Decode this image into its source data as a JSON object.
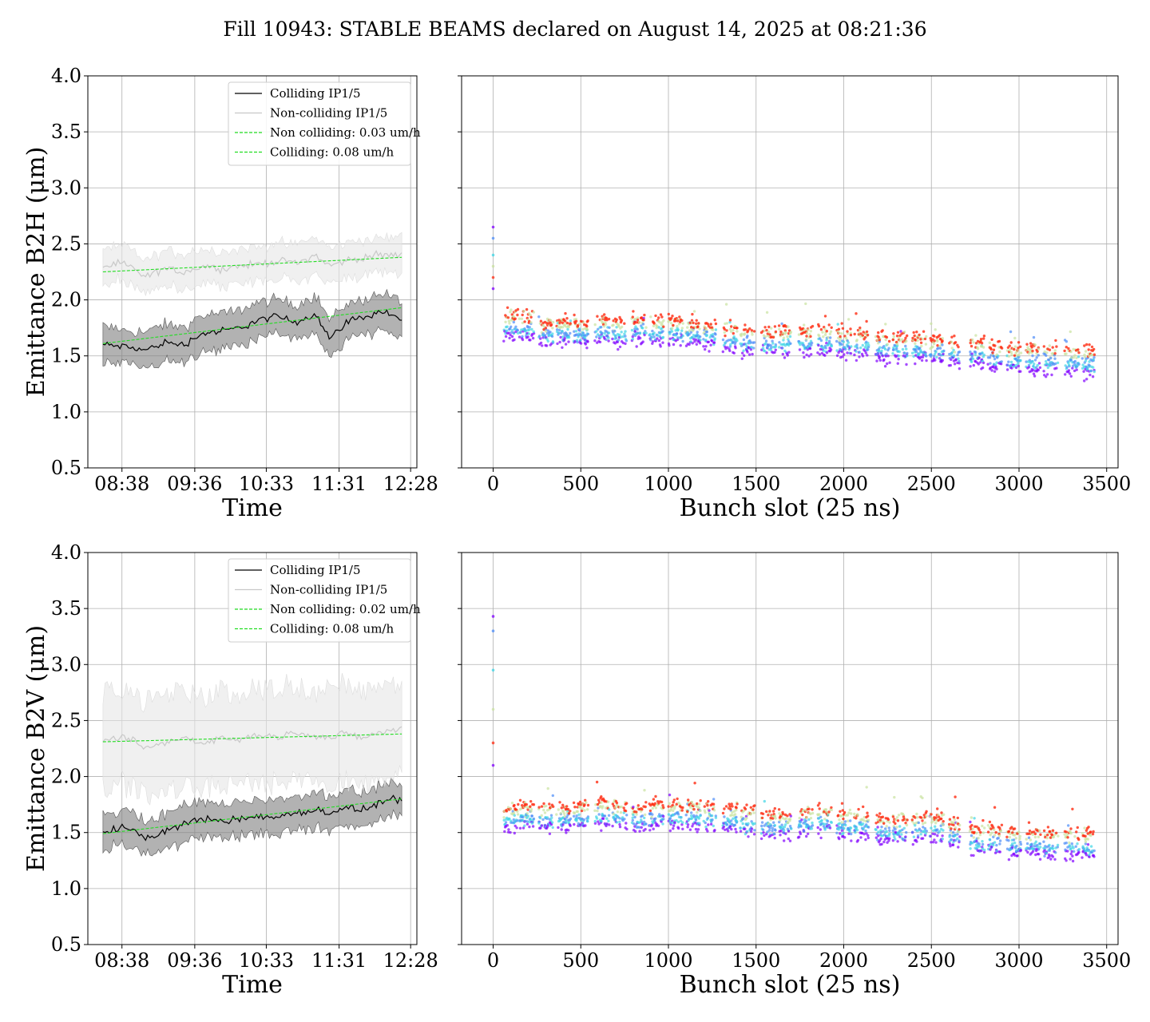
{
  "figure": {
    "title": "Fill 10943: STABLE BEAMS declared on August 14, 2025 at 08:21:36"
  },
  "colors": {
    "colliding_line": "#000000",
    "colliding_band": "#7f7f7f",
    "noncolliding_line": "#c8c8c8",
    "noncolliding_band": "#e6e6e6",
    "fit_line": "#22dd22",
    "grid": "#b0b0b0",
    "scatter_palette": [
      "#8000ff",
      "#4c8cf8",
      "#3ed6e6",
      "#c9e2a0",
      "#ff2a10"
    ]
  },
  "chart_data": [
    {
      "id": "h-time",
      "type": "line",
      "xlabel": "Time",
      "ylabel": "Emittance B2H (μm)",
      "ylim": [
        0.5,
        4.0
      ],
      "yticks": [
        "0.5",
        "1.0",
        "1.5",
        "2.0",
        "2.5",
        "3.0",
        "3.5",
        "4.0"
      ],
      "xlim_hours": [
        8.18,
        12.55
      ],
      "xticks": [
        {
          "label": "08:38",
          "hours": 8.633
        },
        {
          "label": "09:36",
          "hours": 9.6
        },
        {
          "label": "10:33",
          "hours": 10.55
        },
        {
          "label": "11:31",
          "hours": 11.517
        },
        {
          "label": "12:28",
          "hours": 12.467
        }
      ],
      "grid": true,
      "legend_position": "upper-center",
      "legend": [
        {
          "label": "Colliding IP1/5",
          "style": "colliding"
        },
        {
          "label": "Non-colliding IP1/5",
          "style": "noncolliding"
        },
        {
          "label": "Non colliding: 0.03 um/h",
          "style": "fit"
        },
        {
          "label": "Colliding: 0.08 um/h",
          "style": "fit"
        }
      ],
      "series": [
        {
          "name": "Colliding IP1/5",
          "t_hours": [
            8.38,
            8.68,
            8.95,
            9.2,
            9.45,
            9.7,
            9.95,
            10.2,
            10.45,
            10.7,
            10.95,
            11.2,
            11.4,
            11.6,
            11.85,
            12.1,
            12.35
          ],
          "values": [
            1.6,
            1.58,
            1.55,
            1.62,
            1.6,
            1.7,
            1.72,
            1.75,
            1.82,
            1.85,
            1.8,
            1.88,
            1.65,
            1.8,
            1.85,
            1.9,
            1.82
          ],
          "band": 0.15
        },
        {
          "name": "Non-colliding IP1/5",
          "t_hours": [
            8.38,
            8.68,
            8.95,
            9.2,
            9.45,
            9.7,
            9.95,
            10.2,
            10.45,
            10.7,
            10.95,
            11.2,
            11.4,
            11.6,
            11.85,
            12.1,
            12.35
          ],
          "values": [
            2.3,
            2.32,
            2.2,
            2.28,
            2.25,
            2.3,
            2.28,
            2.3,
            2.32,
            2.35,
            2.33,
            2.4,
            2.3,
            2.35,
            2.38,
            2.4,
            2.4
          ],
          "band": 0.15
        },
        {
          "name": "Non colliding: 0.03 um/h",
          "t_hours": [
            8.38,
            12.35
          ],
          "values": [
            2.25,
            2.38
          ]
        },
        {
          "name": "Colliding: 0.08 um/h",
          "t_hours": [
            8.38,
            12.35
          ],
          "values": [
            1.61,
            1.93
          ]
        }
      ]
    },
    {
      "id": "h-bunch",
      "type": "scatter",
      "xlabel": "Bunch slot (25 ns)",
      "xlim": [
        -180,
        3565
      ],
      "xticks": [
        0,
        500,
        1000,
        1500,
        2000,
        2500,
        3000,
        3500
      ],
      "ylim": [
        0.5,
        4.0
      ],
      "grid": true,
      "trains": [
        {
          "start": 60,
          "end": 140,
          "mean": 1.8
        },
        {
          "start": 150,
          "end": 230,
          "mean": 1.79
        },
        {
          "start": 260,
          "end": 340,
          "mean": 1.73
        },
        {
          "start": 360,
          "end": 440,
          "mean": 1.74
        },
        {
          "start": 460,
          "end": 540,
          "mean": 1.74
        },
        {
          "start": 580,
          "end": 660,
          "mean": 1.76
        },
        {
          "start": 680,
          "end": 760,
          "mean": 1.74
        },
        {
          "start": 790,
          "end": 870,
          "mean": 1.77
        },
        {
          "start": 890,
          "end": 970,
          "mean": 1.75
        },
        {
          "start": 1000,
          "end": 1080,
          "mean": 1.75
        },
        {
          "start": 1100,
          "end": 1180,
          "mean": 1.73
        },
        {
          "start": 1200,
          "end": 1270,
          "mean": 1.72
        },
        {
          "start": 1310,
          "end": 1390,
          "mean": 1.68
        },
        {
          "start": 1410,
          "end": 1490,
          "mean": 1.66
        },
        {
          "start": 1530,
          "end": 1610,
          "mean": 1.66
        },
        {
          "start": 1630,
          "end": 1700,
          "mean": 1.66
        },
        {
          "start": 1740,
          "end": 1820,
          "mean": 1.65
        },
        {
          "start": 1850,
          "end": 1930,
          "mean": 1.66
        },
        {
          "start": 1960,
          "end": 2040,
          "mean": 1.65
        },
        {
          "start": 2060,
          "end": 2140,
          "mean": 1.64
        },
        {
          "start": 2180,
          "end": 2260,
          "mean": 1.6
        },
        {
          "start": 2280,
          "end": 2360,
          "mean": 1.6
        },
        {
          "start": 2390,
          "end": 2470,
          "mean": 1.6
        },
        {
          "start": 2490,
          "end": 2570,
          "mean": 1.58
        },
        {
          "start": 2600,
          "end": 2660,
          "mean": 1.56
        },
        {
          "start": 2720,
          "end": 2800,
          "mean": 1.56
        },
        {
          "start": 2820,
          "end": 2900,
          "mean": 1.52
        },
        {
          "start": 2930,
          "end": 3010,
          "mean": 1.5
        },
        {
          "start": 3040,
          "end": 3120,
          "mean": 1.5
        },
        {
          "start": 3140,
          "end": 3220,
          "mean": 1.5
        },
        {
          "start": 3260,
          "end": 3340,
          "mean": 1.48
        },
        {
          "start": 3360,
          "end": 3430,
          "mean": 1.48
        }
      ],
      "first_bunch_values": [
        2.65,
        2.55,
        2.4,
        2.3,
        2.2,
        2.1
      ]
    },
    {
      "id": "v-time",
      "type": "line",
      "xlabel": "Time",
      "ylabel": "Emittance B2V (μm)",
      "ylim": [
        0.5,
        4.0
      ],
      "yticks": [
        "0.5",
        "1.0",
        "1.5",
        "2.0",
        "2.5",
        "3.0",
        "3.5",
        "4.0"
      ],
      "xlim_hours": [
        8.18,
        12.55
      ],
      "xticks": [
        {
          "label": "08:38",
          "hours": 8.633
        },
        {
          "label": "09:36",
          "hours": 9.6
        },
        {
          "label": "10:33",
          "hours": 10.55
        },
        {
          "label": "11:31",
          "hours": 11.517
        },
        {
          "label": "12:28",
          "hours": 12.467
        }
      ],
      "grid": true,
      "legend_position": "upper-center",
      "legend": [
        {
          "label": "Colliding IP1/5",
          "style": "colliding"
        },
        {
          "label": "Non-colliding IP1/5",
          "style": "noncolliding"
        },
        {
          "label": "Non colliding: 0.02 um/h",
          "style": "fit"
        },
        {
          "label": "Colliding: 0.08 um/h",
          "style": "fit"
        }
      ],
      "series": [
        {
          "name": "Colliding IP1/5",
          "t_hours": [
            8.38,
            8.68,
            8.95,
            9.2,
            9.45,
            9.7,
            9.95,
            10.2,
            10.45,
            10.7,
            10.95,
            11.2,
            11.4,
            11.6,
            11.85,
            12.1,
            12.35
          ],
          "values": [
            1.5,
            1.55,
            1.45,
            1.5,
            1.58,
            1.62,
            1.6,
            1.62,
            1.65,
            1.63,
            1.68,
            1.7,
            1.68,
            1.72,
            1.7,
            1.78,
            1.8
          ],
          "band": 0.15
        },
        {
          "name": "Non-colliding IP1/5",
          "t_hours": [
            8.38,
            8.68,
            8.95,
            9.2,
            9.45,
            9.7,
            9.95,
            10.2,
            10.45,
            10.7,
            10.95,
            11.2,
            11.4,
            11.6,
            11.85,
            12.1,
            12.35
          ],
          "values": [
            2.3,
            2.35,
            2.25,
            2.3,
            2.35,
            2.3,
            2.35,
            2.32,
            2.38,
            2.35,
            2.4,
            2.36,
            2.35,
            2.38,
            2.35,
            2.4,
            2.42
          ],
          "band": 0.4
        },
        {
          "name": "Non colliding: 0.02 um/h",
          "t_hours": [
            8.38,
            12.35
          ],
          "values": [
            2.31,
            2.38
          ]
        },
        {
          "name": "Colliding: 0.08 um/h",
          "t_hours": [
            8.38,
            12.35
          ],
          "values": [
            1.49,
            1.8
          ]
        }
      ]
    },
    {
      "id": "v-bunch",
      "type": "scatter",
      "xlabel": "Bunch slot (25 ns)",
      "xlim": [
        -180,
        3565
      ],
      "xticks": [
        0,
        500,
        1000,
        1500,
        2000,
        2500,
        3000,
        3500
      ],
      "ylim": [
        0.5,
        4.0
      ],
      "grid": true,
      "trains": [
        {
          "start": 60,
          "end": 140,
          "mean": 1.66
        },
        {
          "start": 150,
          "end": 230,
          "mean": 1.68
        },
        {
          "start": 260,
          "end": 340,
          "mean": 1.66
        },
        {
          "start": 360,
          "end": 440,
          "mean": 1.66
        },
        {
          "start": 460,
          "end": 540,
          "mean": 1.68
        },
        {
          "start": 580,
          "end": 660,
          "mean": 1.7
        },
        {
          "start": 680,
          "end": 760,
          "mean": 1.68
        },
        {
          "start": 790,
          "end": 870,
          "mean": 1.66
        },
        {
          "start": 890,
          "end": 970,
          "mean": 1.68
        },
        {
          "start": 1000,
          "end": 1080,
          "mean": 1.68
        },
        {
          "start": 1100,
          "end": 1180,
          "mean": 1.68
        },
        {
          "start": 1200,
          "end": 1270,
          "mean": 1.68
        },
        {
          "start": 1310,
          "end": 1390,
          "mean": 1.65
        },
        {
          "start": 1410,
          "end": 1490,
          "mean": 1.62
        },
        {
          "start": 1530,
          "end": 1610,
          "mean": 1.6
        },
        {
          "start": 1630,
          "end": 1700,
          "mean": 1.6
        },
        {
          "start": 1740,
          "end": 1820,
          "mean": 1.62
        },
        {
          "start": 1850,
          "end": 1930,
          "mean": 1.64
        },
        {
          "start": 1960,
          "end": 2040,
          "mean": 1.6
        },
        {
          "start": 2060,
          "end": 2140,
          "mean": 1.6
        },
        {
          "start": 2180,
          "end": 2260,
          "mean": 1.55
        },
        {
          "start": 2280,
          "end": 2360,
          "mean": 1.56
        },
        {
          "start": 2390,
          "end": 2470,
          "mean": 1.57
        },
        {
          "start": 2490,
          "end": 2570,
          "mean": 1.57
        },
        {
          "start": 2600,
          "end": 2660,
          "mean": 1.52
        },
        {
          "start": 2720,
          "end": 2800,
          "mean": 1.46
        },
        {
          "start": 2820,
          "end": 2900,
          "mean": 1.46
        },
        {
          "start": 2930,
          "end": 3010,
          "mean": 1.44
        },
        {
          "start": 3040,
          "end": 3120,
          "mean": 1.44
        },
        {
          "start": 3140,
          "end": 3220,
          "mean": 1.42
        },
        {
          "start": 3260,
          "end": 3340,
          "mean": 1.42
        },
        {
          "start": 3360,
          "end": 3430,
          "mean": 1.42
        }
      ],
      "first_bunch_values": [
        3.43,
        3.3,
        2.95,
        2.6,
        2.3,
        2.1
      ]
    }
  ]
}
